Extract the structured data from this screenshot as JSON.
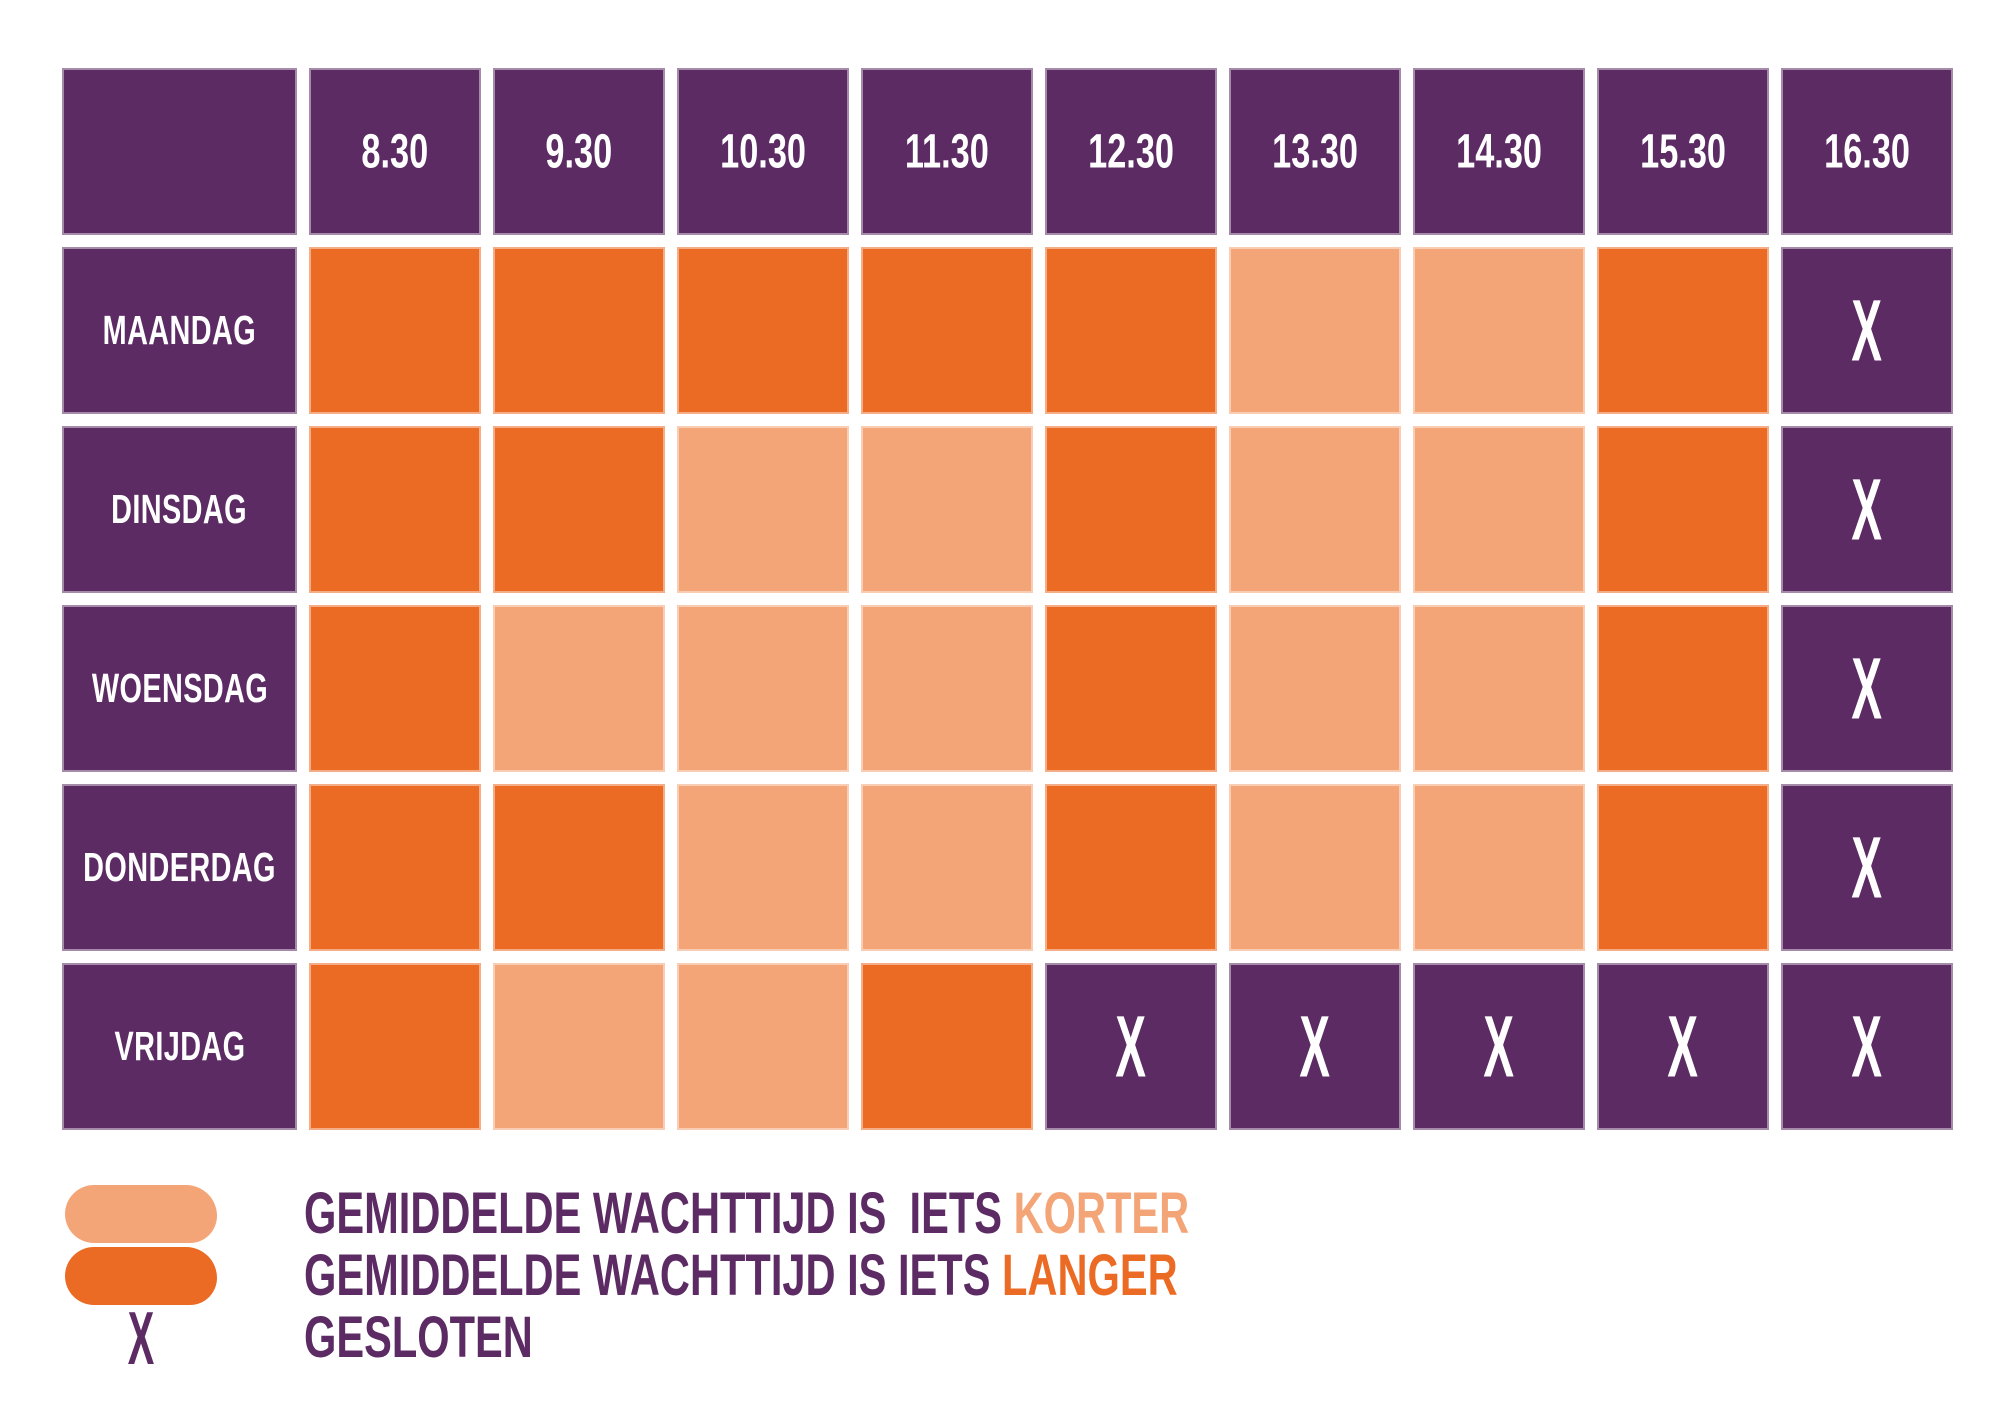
{
  "chart_data": {
    "type": "heatmap",
    "title": "",
    "x_labels": [
      "8.30",
      "9.30",
      "10.30",
      "11.30",
      "12.30",
      "13.30",
      "14.30",
      "15.30",
      "16.30"
    ],
    "y_labels": [
      "MAANDAG",
      "DINSDAG",
      "WOENSDAG",
      "DONDERDAG",
      "VRIJDAG"
    ],
    "values": [
      [
        "langer",
        "langer",
        "langer",
        "langer",
        "langer",
        "korter",
        "korter",
        "langer",
        "gesloten"
      ],
      [
        "langer",
        "langer",
        "korter",
        "korter",
        "langer",
        "korter",
        "korter",
        "langer",
        "gesloten"
      ],
      [
        "langer",
        "korter",
        "korter",
        "korter",
        "langer",
        "korter",
        "korter",
        "langer",
        "gesloten"
      ],
      [
        "langer",
        "langer",
        "korter",
        "korter",
        "langer",
        "korter",
        "korter",
        "langer",
        "gesloten"
      ],
      [
        "langer",
        "korter",
        "korter",
        "langer",
        "gesloten",
        "gesloten",
        "gesloten",
        "gesloten",
        "gesloten"
      ]
    ],
    "value_meanings": {
      "korter": "gemiddelde wachttijd is iets korter",
      "langer": "gemiddelde wachttijd is iets langer",
      "gesloten": "gesloten"
    },
    "closed_marker": "X",
    "corner_label": ""
  },
  "legend": {
    "items": [
      {
        "swatch": "korter",
        "label": "GEMIDDELDE WACHTTIJD IS  IETS ",
        "highlight": "KORTER",
        "highlight_color": "korter"
      },
      {
        "swatch": "langer",
        "label": "GEMIDDELDE WACHTTIJD IS IETS ",
        "highlight": "LANGER",
        "highlight_color": "langer"
      },
      {
        "swatch": "gesloten",
        "label": "GESLOTEN",
        "highlight": "",
        "highlight_color": "none"
      }
    ]
  },
  "colors": {
    "purple": "#5C2B64",
    "orange_dark": "#EB6A24",
    "orange_light": "#F4A577",
    "background": "#ffffff",
    "cell_text": "#ffffff"
  }
}
